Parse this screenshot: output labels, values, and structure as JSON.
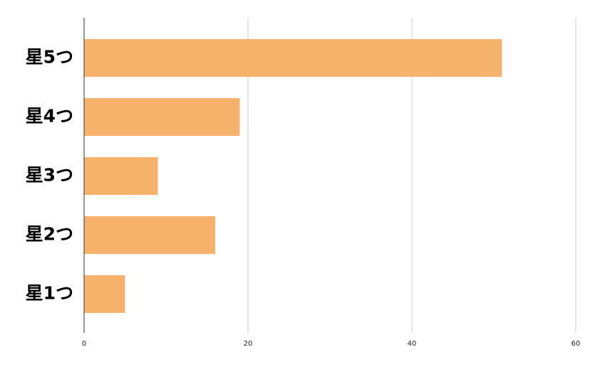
{
  "chart_data": {
    "type": "bar",
    "orientation": "horizontal",
    "categories": [
      "星5つ",
      "星4つ",
      "星3つ",
      "星2つ",
      "星1つ"
    ],
    "values": [
      51,
      19,
      9,
      16,
      5
    ],
    "color": "#f6b26b",
    "xlim": [
      0,
      60
    ],
    "xticks": [
      0,
      20,
      40,
      60
    ],
    "grid": true
  }
}
